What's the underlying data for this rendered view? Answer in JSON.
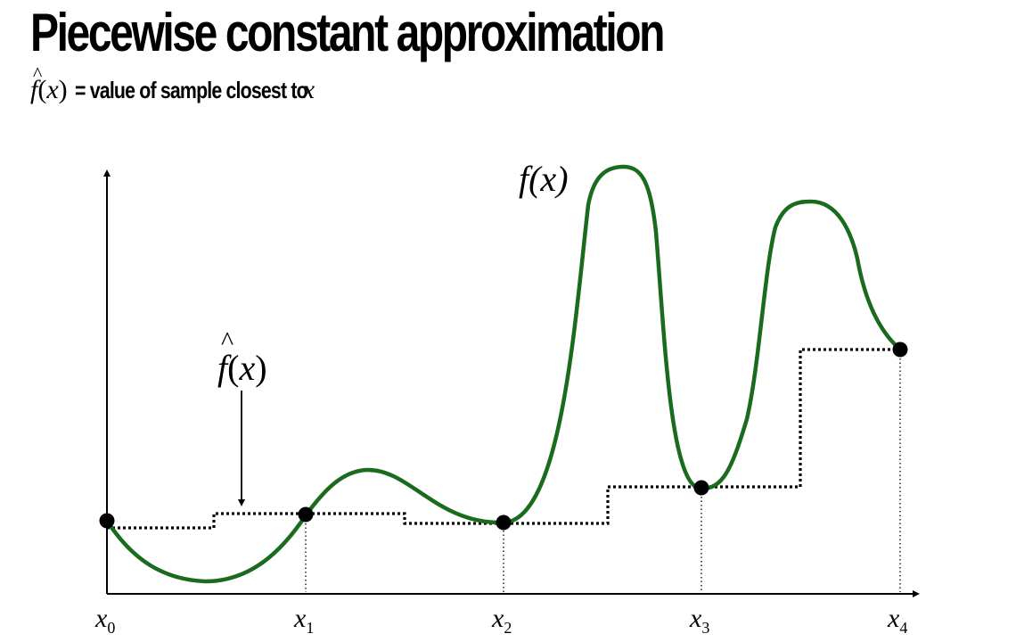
{
  "slide": {
    "title": "Piecewise constant approximation",
    "subtitle": {
      "lhs": "f̂(x)",
      "equals": "=",
      "text": "value of sample closest to",
      "var": "x"
    }
  },
  "diagram": {
    "function_label": "f(x)",
    "approx_label": "f̂(x)",
    "sample_labels": [
      "x0",
      "x1",
      "x2",
      "x3",
      "x4"
    ],
    "sample_subscripts": [
      "0",
      "1",
      "2",
      "3",
      "4"
    ],
    "colors": {
      "curve": "#1a6b1e",
      "axes": "#000000",
      "samples": "#000000",
      "steps": "#000000"
    }
  }
}
